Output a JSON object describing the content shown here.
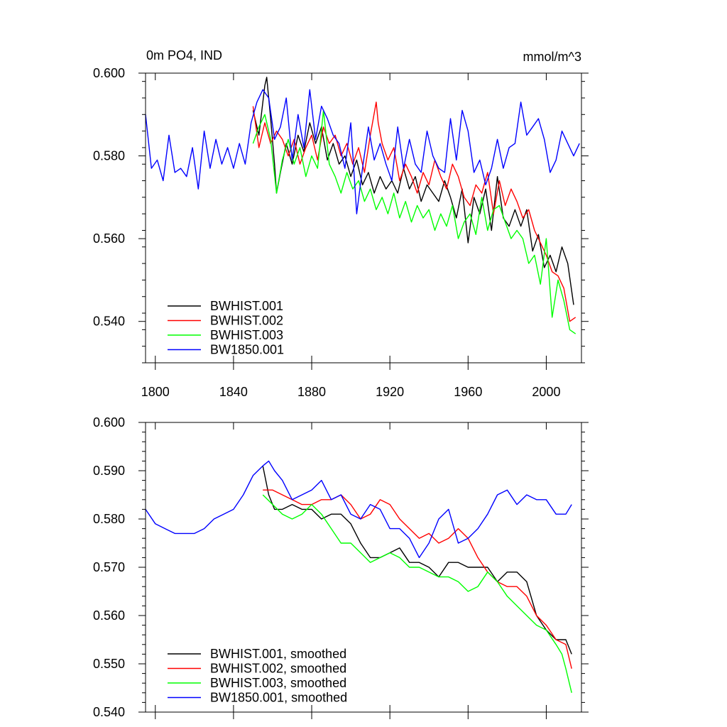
{
  "chart_data": [
    {
      "type": "line",
      "title_left": "0m PO4, IND",
      "title_right": "mmol/m^3",
      "xlim": [
        1795,
        2018
      ],
      "ylim": [
        0.53,
        0.6
      ],
      "xticks": [
        1800,
        1840,
        1880,
        1920,
        1960,
        2000
      ],
      "yticks": [
        0.54,
        0.56,
        0.58,
        0.6
      ],
      "ytick_labels": [
        "0.540",
        "0.560",
        "0.580",
        "0.600"
      ],
      "grid": false,
      "legend_position": "bottom-left",
      "series": [
        {
          "name": "BWHIST.001",
          "color": "#000000",
          "x": [
            1850,
            1853,
            1856,
            1857,
            1859,
            1861,
            1862,
            1864,
            1867,
            1870,
            1873,
            1876,
            1879,
            1882,
            1885,
            1888,
            1891,
            1894,
            1897,
            1900,
            1903,
            1906,
            1909,
            1912,
            1915,
            1918,
            1921,
            1924,
            1927,
            1930,
            1933,
            1936,
            1939,
            1942,
            1945,
            1948,
            1951,
            1954,
            1957,
            1960,
            1963,
            1966,
            1969,
            1972,
            1975,
            1978,
            1981,
            1984,
            1987,
            1990,
            1993,
            1996,
            1999,
            2002,
            2005,
            2008,
            2011,
            2014
          ],
          "y": [
            0.591,
            0.585,
            0.597,
            0.599,
            0.589,
            0.578,
            0.571,
            0.576,
            0.583,
            0.578,
            0.585,
            0.581,
            0.588,
            0.583,
            0.587,
            0.579,
            0.583,
            0.578,
            0.58,
            0.575,
            0.579,
            0.573,
            0.576,
            0.571,
            0.575,
            0.572,
            0.574,
            0.571,
            0.577,
            0.572,
            0.575,
            0.569,
            0.573,
            0.571,
            0.569,
            0.574,
            0.57,
            0.565,
            0.572,
            0.559,
            0.57,
            0.566,
            0.572,
            0.562,
            0.575,
            0.565,
            0.563,
            0.567,
            0.563,
            0.567,
            0.557,
            0.561,
            0.553,
            0.556,
            0.552,
            0.558,
            0.554,
            0.544
          ]
        },
        {
          "name": "BWHIST.002",
          "color": "#ff0000",
          "x": [
            1850,
            1853,
            1856,
            1859,
            1862,
            1865,
            1868,
            1871,
            1874,
            1877,
            1880,
            1883,
            1886,
            1889,
            1892,
            1895,
            1898,
            1901,
            1904,
            1907,
            1910,
            1913,
            1914,
            1916,
            1919,
            1922,
            1925,
            1928,
            1931,
            1934,
            1937,
            1940,
            1943,
            1946,
            1949,
            1952,
            1955,
            1958,
            1961,
            1964,
            1967,
            1970,
            1973,
            1976,
            1979,
            1982,
            1985,
            1988,
            1991,
            1994,
            1997,
            2000,
            2003,
            2006,
            2009,
            2012,
            2015
          ],
          "y": [
            0.592,
            0.582,
            0.588,
            0.583,
            0.586,
            0.584,
            0.58,
            0.584,
            0.578,
            0.582,
            0.585,
            0.579,
            0.587,
            0.583,
            0.585,
            0.58,
            0.583,
            0.578,
            0.582,
            0.576,
            0.585,
            0.593,
            0.588,
            0.583,
            0.579,
            0.582,
            0.574,
            0.578,
            0.575,
            0.571,
            0.576,
            0.573,
            0.579,
            0.575,
            0.572,
            0.578,
            0.575,
            0.57,
            0.568,
            0.573,
            0.571,
            0.576,
            0.566,
            0.574,
            0.568,
            0.572,
            0.569,
            0.565,
            0.567,
            0.562,
            0.559,
            0.556,
            0.552,
            0.551,
            0.548,
            0.54,
            0.541
          ]
        },
        {
          "name": "BWHIST.003",
          "color": "#00ff00",
          "x": [
            1850,
            1853,
            1856,
            1859,
            1862,
            1865,
            1868,
            1871,
            1874,
            1877,
            1880,
            1883,
            1886,
            1889,
            1892,
            1895,
            1898,
            1901,
            1904,
            1907,
            1910,
            1913,
            1916,
            1919,
            1922,
            1925,
            1928,
            1931,
            1934,
            1937,
            1940,
            1943,
            1946,
            1949,
            1952,
            1955,
            1958,
            1961,
            1964,
            1967,
            1970,
            1973,
            1976,
            1979,
            1982,
            1985,
            1988,
            1991,
            1994,
            1997,
            2000,
            2003,
            2006,
            2009,
            2012,
            2015
          ],
          "y": [
            0.583,
            0.587,
            0.59,
            0.584,
            0.571,
            0.579,
            0.584,
            0.578,
            0.582,
            0.575,
            0.58,
            0.577,
            0.591,
            0.578,
            0.575,
            0.571,
            0.576,
            0.572,
            0.574,
            0.569,
            0.572,
            0.567,
            0.57,
            0.566,
            0.571,
            0.565,
            0.569,
            0.564,
            0.568,
            0.565,
            0.567,
            0.562,
            0.566,
            0.563,
            0.568,
            0.56,
            0.564,
            0.566,
            0.561,
            0.57,
            0.562,
            0.567,
            0.568,
            0.564,
            0.56,
            0.562,
            0.56,
            0.554,
            0.556,
            0.549,
            0.56,
            0.541,
            0.55,
            0.545,
            0.538,
            0.537
          ]
        },
        {
          "name": "BW1850.001",
          "color": "#0000ff",
          "x": [
            1795,
            1798,
            1801,
            1804,
            1807,
            1810,
            1813,
            1816,
            1819,
            1822,
            1825,
            1828,
            1831,
            1834,
            1837,
            1840,
            1843,
            1846,
            1849,
            1852,
            1855,
            1858,
            1861,
            1864,
            1867,
            1870,
            1873,
            1876,
            1879,
            1882,
            1885,
            1888,
            1891,
            1894,
            1897,
            1900,
            1903,
            1906,
            1909,
            1912,
            1915,
            1918,
            1921,
            1924,
            1927,
            1930,
            1933,
            1936,
            1939,
            1942,
            1945,
            1948,
            1951,
            1954,
            1957,
            1960,
            1963,
            1966,
            1969,
            1972,
            1975,
            1978,
            1981,
            1984,
            1987,
            1990,
            1993,
            1996,
            1999,
            2002,
            2005,
            2008,
            2011,
            2014,
            2017
          ],
          "y": [
            0.59,
            0.577,
            0.579,
            0.574,
            0.585,
            0.576,
            0.577,
            0.575,
            0.582,
            0.572,
            0.586,
            0.577,
            0.584,
            0.578,
            0.582,
            0.577,
            0.583,
            0.578,
            0.588,
            0.593,
            0.596,
            0.594,
            0.584,
            0.587,
            0.594,
            0.579,
            0.59,
            0.582,
            0.596,
            0.584,
            0.592,
            0.589,
            0.585,
            0.583,
            0.577,
            0.588,
            0.566,
            0.577,
            0.587,
            0.579,
            0.583,
            0.578,
            0.574,
            0.587,
            0.577,
            0.584,
            0.578,
            0.576,
            0.586,
            0.58,
            0.577,
            0.576,
            0.589,
            0.579,
            0.591,
            0.586,
            0.576,
            0.579,
            0.573,
            0.577,
            0.584,
            0.577,
            0.582,
            0.583,
            0.593,
            0.585,
            0.587,
            0.589,
            0.584,
            0.576,
            0.579,
            0.586,
            0.583,
            0.58,
            0.583
          ]
        }
      ]
    },
    {
      "type": "line",
      "xlim": [
        1795,
        2018
      ],
      "ylim": [
        0.54,
        0.6
      ],
      "xticks": [
        1800,
        1840,
        1880,
        1920,
        1960,
        2000
      ],
      "yticks": [
        0.54,
        0.55,
        0.56,
        0.57,
        0.58,
        0.59,
        0.6
      ],
      "ytick_labels": [
        "0.540",
        "0.550",
        "0.560",
        "0.570",
        "0.580",
        "0.590",
        "0.600"
      ],
      "grid": false,
      "legend_position": "bottom-left",
      "series": [
        {
          "name": "BWHIST.001, smoothed",
          "color": "#000000",
          "x": [
            1855,
            1858,
            1861,
            1865,
            1870,
            1875,
            1880,
            1885,
            1890,
            1895,
            1900,
            1905,
            1910,
            1915,
            1920,
            1925,
            1930,
            1935,
            1940,
            1945,
            1950,
            1955,
            1960,
            1965,
            1970,
            1975,
            1980,
            1985,
            1990,
            1995,
            2000,
            2005,
            2008,
            2010,
            2013
          ],
          "y": [
            0.591,
            0.585,
            0.582,
            0.582,
            0.583,
            0.582,
            0.582,
            0.58,
            0.581,
            0.581,
            0.579,
            0.575,
            0.572,
            0.572,
            0.573,
            0.574,
            0.571,
            0.571,
            0.57,
            0.568,
            0.571,
            0.571,
            0.57,
            0.57,
            0.57,
            0.567,
            0.569,
            0.569,
            0.567,
            0.56,
            0.557,
            0.555,
            0.555,
            0.555,
            0.552
          ]
        },
        {
          "name": "BWHIST.002, smoothed",
          "color": "#ff0000",
          "x": [
            1855,
            1860,
            1865,
            1870,
            1875,
            1880,
            1885,
            1890,
            1895,
            1900,
            1905,
            1910,
            1915,
            1920,
            1925,
            1930,
            1935,
            1940,
            1945,
            1950,
            1955,
            1960,
            1965,
            1970,
            1975,
            1980,
            1985,
            1990,
            1995,
            2000,
            2005,
            2010,
            2013
          ],
          "y": [
            0.586,
            0.586,
            0.585,
            0.584,
            0.583,
            0.583,
            0.584,
            0.584,
            0.585,
            0.583,
            0.58,
            0.581,
            0.584,
            0.583,
            0.58,
            0.578,
            0.576,
            0.577,
            0.575,
            0.576,
            0.578,
            0.576,
            0.572,
            0.569,
            0.567,
            0.566,
            0.566,
            0.564,
            0.56,
            0.558,
            0.555,
            0.554,
            0.549
          ]
        },
        {
          "name": "BWHIST.003, smoothed",
          "color": "#00ff00",
          "x": [
            1855,
            1860,
            1865,
            1870,
            1875,
            1880,
            1885,
            1890,
            1895,
            1900,
            1905,
            1910,
            1915,
            1920,
            1925,
            1930,
            1935,
            1940,
            1945,
            1950,
            1955,
            1960,
            1965,
            1970,
            1975,
            1980,
            1985,
            1990,
            1995,
            2000,
            2005,
            2008,
            2010,
            2013
          ],
          "y": [
            0.585,
            0.583,
            0.581,
            0.58,
            0.581,
            0.583,
            0.581,
            0.578,
            0.575,
            0.575,
            0.573,
            0.571,
            0.572,
            0.573,
            0.572,
            0.57,
            0.57,
            0.569,
            0.568,
            0.568,
            0.567,
            0.565,
            0.566,
            0.569,
            0.567,
            0.564,
            0.562,
            0.56,
            0.558,
            0.557,
            0.554,
            0.552,
            0.549,
            0.544
          ]
        },
        {
          "name": "BW1850.001, smoothed",
          "color": "#0000ff",
          "x": [
            1795,
            1800,
            1805,
            1810,
            1815,
            1820,
            1825,
            1830,
            1835,
            1840,
            1845,
            1850,
            1855,
            1858,
            1861,
            1865,
            1870,
            1875,
            1880,
            1885,
            1890,
            1895,
            1900,
            1905,
            1910,
            1915,
            1920,
            1925,
            1930,
            1935,
            1940,
            1945,
            1950,
            1955,
            1960,
            1965,
            1970,
            1975,
            1980,
            1985,
            1990,
            1995,
            2000,
            2005,
            2010,
            2013
          ],
          "y": [
            0.582,
            0.579,
            0.578,
            0.577,
            0.577,
            0.577,
            0.578,
            0.58,
            0.581,
            0.582,
            0.585,
            0.589,
            0.591,
            0.592,
            0.59,
            0.588,
            0.584,
            0.585,
            0.586,
            0.588,
            0.584,
            0.585,
            0.581,
            0.58,
            0.583,
            0.582,
            0.578,
            0.578,
            0.576,
            0.572,
            0.575,
            0.58,
            0.582,
            0.575,
            0.576,
            0.578,
            0.581,
            0.585,
            0.586,
            0.583,
            0.585,
            0.584,
            0.584,
            0.581,
            0.581,
            0.583
          ]
        }
      ]
    }
  ]
}
